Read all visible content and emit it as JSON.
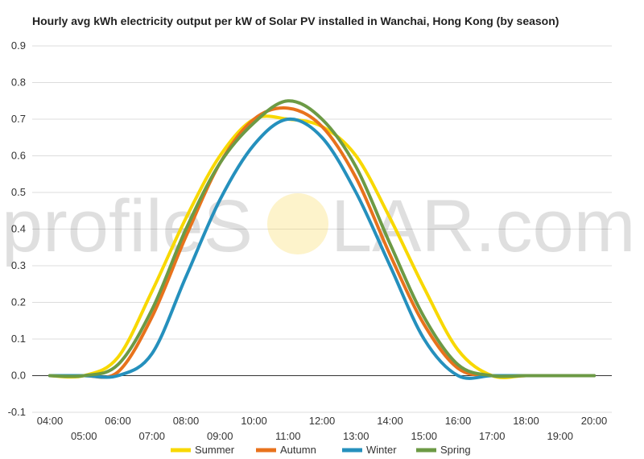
{
  "chart_data": {
    "type": "line",
    "title": "Hourly avg kWh electricity output per kW of Solar PV installed in Wanchai, Hong Kong (by season)",
    "xlabel": "",
    "ylabel": "",
    "x": [
      "04:00",
      "05:00",
      "06:00",
      "07:00",
      "08:00",
      "09:00",
      "10:00",
      "11:00",
      "12:00",
      "13:00",
      "14:00",
      "15:00",
      "16:00",
      "17:00",
      "18:00",
      "19:00",
      "20:00"
    ],
    "y_ticks": [
      "0.9",
      "0.8",
      "0.7",
      "0.6",
      "0.5",
      "0.4",
      "0.3",
      "0.2",
      "0.1",
      "0.0",
      "-0.1"
    ],
    "ylim": [
      -0.1,
      0.9
    ],
    "grid": true,
    "legend_position": "bottom",
    "series": [
      {
        "name": "Summer",
        "color": "#F8D800",
        "values": [
          0.0,
          0.0,
          0.05,
          0.23,
          0.43,
          0.6,
          0.7,
          0.7,
          0.68,
          0.6,
          0.43,
          0.24,
          0.07,
          0.0,
          0.0,
          0.0,
          0.0
        ]
      },
      {
        "name": "Autumn",
        "color": "#E8721C",
        "values": [
          0.0,
          0.0,
          0.01,
          0.16,
          0.38,
          0.58,
          0.7,
          0.73,
          0.68,
          0.54,
          0.33,
          0.14,
          0.02,
          0.0,
          0.0,
          0.0,
          0.0
        ]
      },
      {
        "name": "Winter",
        "color": "#2590BD",
        "values": [
          0.0,
          0.0,
          0.0,
          0.06,
          0.27,
          0.48,
          0.63,
          0.7,
          0.65,
          0.5,
          0.3,
          0.1,
          0.0,
          0.0,
          0.0,
          0.0,
          0.0
        ]
      },
      {
        "name": "Spring",
        "color": "#6C9A45",
        "values": [
          0.0,
          0.0,
          0.03,
          0.18,
          0.4,
          0.58,
          0.69,
          0.75,
          0.7,
          0.57,
          0.36,
          0.16,
          0.03,
          0.0,
          0.0,
          0.0,
          0.0
        ]
      }
    ],
    "watermark": {
      "text": "profileSOLAR.com",
      "part1": "profileS",
      "part2": "LAR.com"
    }
  }
}
